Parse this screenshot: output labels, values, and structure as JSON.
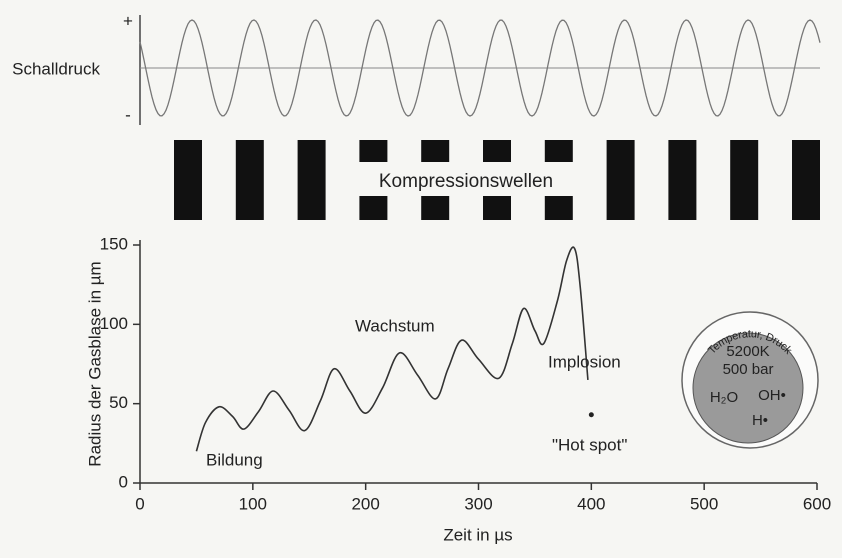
{
  "chart_data": {
    "type": "line",
    "x_label": "Zeit in µs",
    "y_label": "Radius der Gasblase in µm",
    "x": [
      50,
      58,
      70,
      82,
      92,
      105,
      118,
      132,
      146,
      160,
      172,
      186,
      200,
      215,
      230,
      246,
      262,
      273,
      285,
      300,
      318,
      330,
      340,
      350,
      358,
      370,
      378,
      385,
      390,
      397
    ],
    "values": [
      20,
      38,
      48,
      42,
      34,
      45,
      58,
      46,
      33,
      52,
      72,
      58,
      44,
      60,
      82,
      68,
      53,
      72,
      90,
      78,
      66,
      88,
      110,
      96,
      88,
      115,
      140,
      148,
      125,
      65
    ],
    "color": "#333333",
    "xlim": [
      0,
      600
    ],
    "ylim": [
      0,
      150
    ],
    "xticks": [
      0,
      100,
      200,
      300,
      400,
      500,
      600
    ],
    "yticks": [
      0,
      50,
      100,
      150
    ],
    "hot_spot": {
      "x": 400,
      "y": 43
    },
    "pressure_label": "Schalldruck",
    "pressure_plus": "+",
    "pressure_minus": "-",
    "compression_label": "Kompressionswellen",
    "annotations": [
      "Bildung",
      "Wachstum",
      "Implosion",
      "\"Hot spot\""
    ],
    "inset": {
      "arc_label": "Temperatur, Druck",
      "temperature": "5200K",
      "pressure": "500 bar",
      "species": [
        "H₂O",
        "OH•",
        "H•"
      ]
    }
  }
}
